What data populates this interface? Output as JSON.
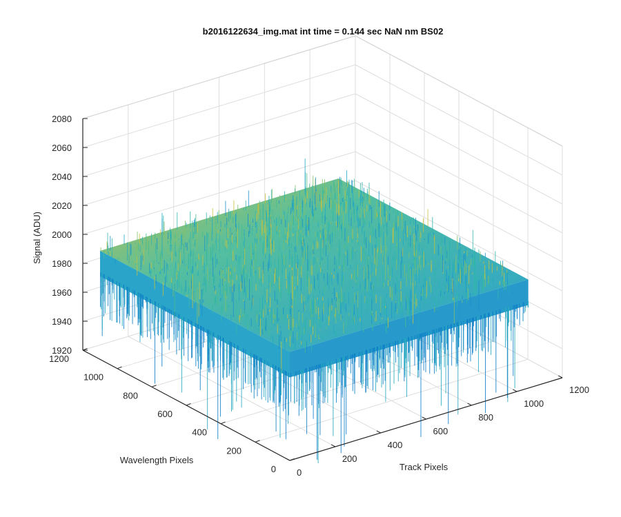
{
  "chart_data": {
    "type": "surface",
    "title": "b2016122634_img.mat int time = 0.144 sec  NaN nm BS02",
    "xlabel": "Track Pixels",
    "ylabel": "Wavelength Pixels",
    "zlabel": "Signal (ADU)",
    "xlim": [
      0,
      1200
    ],
    "ylim": [
      0,
      1200
    ],
    "zlim": [
      1920,
      2080
    ],
    "x_ticks": [
      "0",
      "200",
      "400",
      "600",
      "800",
      "1000",
      "1200"
    ],
    "y_ticks": [
      "0",
      "200",
      "400",
      "600",
      "800",
      "1000",
      "1200"
    ],
    "z_ticks": [
      "1920",
      "1940",
      "1960",
      "1980",
      "2000",
      "2020",
      "2040",
      "2060",
      "2080"
    ],
    "data_extent": {
      "x_range": [
        0,
        1050
      ],
      "y_range": [
        0,
        1100
      ],
      "z_mean": 1995,
      "z_min_approx": 1930,
      "z_max_approx": 2060
    },
    "grid": true,
    "colormap": "parula",
    "colors": {
      "low": "#0a72c4",
      "mid": "#1ab3b3",
      "high": "#d6c23a"
    }
  }
}
